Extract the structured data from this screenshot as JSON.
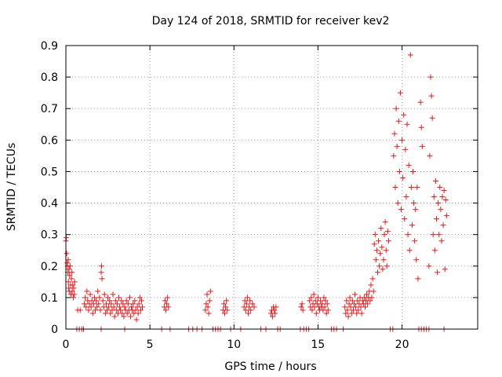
{
  "chart_data": {
    "type": "scatter",
    "title": "Day 124 of 2018, SRMTID for receiver kev2",
    "xlabel": "GPS time / hours",
    "ylabel": "SRMTID / TECUs",
    "xlim": [
      0,
      24.5
    ],
    "ylim": [
      0,
      0.9
    ],
    "x_ticks": [
      0,
      5,
      10,
      15,
      20
    ],
    "x_tick_labels": [
      "0",
      "5",
      "10",
      "15",
      "20"
    ],
    "y_ticks": [
      0,
      0.1,
      0.2,
      0.3,
      0.4,
      0.5,
      0.6,
      0.7,
      0.8,
      0.9
    ],
    "y_tick_labels": [
      "0",
      "0.1",
      "0.2",
      "0.3",
      "0.4",
      "0.5",
      "0.6",
      "0.7",
      "0.8",
      "0.9"
    ],
    "grid": true,
    "marker": "+",
    "color": "#e41a1c",
    "series": [
      {
        "name": "SRMTID",
        "points": [
          [
            0.0,
            0.28
          ],
          [
            0.02,
            0.29
          ],
          [
            0.05,
            0.24
          ],
          [
            0.08,
            0.21
          ],
          [
            0.1,
            0.2
          ],
          [
            0.12,
            0.18
          ],
          [
            0.14,
            0.22
          ],
          [
            0.15,
            0.15
          ],
          [
            0.17,
            0.13
          ],
          [
            0.19,
            0.19
          ],
          [
            0.2,
            0.12
          ],
          [
            0.22,
            0.17
          ],
          [
            0.25,
            0.2
          ],
          [
            0.28,
            0.14
          ],
          [
            0.3,
            0.11
          ],
          [
            0.33,
            0.16
          ],
          [
            0.36,
            0.18
          ],
          [
            0.38,
            0.12
          ],
          [
            0.41,
            0.14
          ],
          [
            0.44,
            0.1
          ],
          [
            0.47,
            0.13
          ],
          [
            0.5,
            0.11
          ],
          [
            0.52,
            0.15
          ],
          [
            0.7,
            0.06
          ],
          [
            0.85,
            0.06
          ],
          [
            1.1,
            0.08
          ],
          [
            1.15,
            0.1
          ],
          [
            1.2,
            0.07
          ],
          [
            1.25,
            0.12
          ],
          [
            1.3,
            0.09
          ],
          [
            1.35,
            0.06
          ],
          [
            1.4,
            0.08
          ],
          [
            1.45,
            0.11
          ],
          [
            1.5,
            0.07
          ],
          [
            1.55,
            0.09
          ],
          [
            1.6,
            0.05
          ],
          [
            1.65,
            0.08
          ],
          [
            1.7,
            0.1
          ],
          [
            1.75,
            0.06
          ],
          [
            1.8,
            0.09
          ],
          [
            1.85,
            0.07
          ],
          [
            1.9,
            0.12
          ],
          [
            1.95,
            0.08
          ],
          [
            2.0,
            0.1
          ],
          [
            2.05,
            0.06
          ],
          [
            2.1,
            0.18
          ],
          [
            2.12,
            0.2
          ],
          [
            2.15,
            0.16
          ],
          [
            2.2,
            0.09
          ],
          [
            2.25,
            0.07
          ],
          [
            2.3,
            0.11
          ],
          [
            2.35,
            0.05
          ],
          [
            2.4,
            0.08
          ],
          [
            2.45,
            0.06
          ],
          [
            2.5,
            0.1
          ],
          [
            2.55,
            0.07
          ],
          [
            2.6,
            0.09
          ],
          [
            2.65,
            0.05
          ],
          [
            2.7,
            0.08
          ],
          [
            2.75,
            0.06
          ],
          [
            2.8,
            0.11
          ],
          [
            2.85,
            0.07
          ],
          [
            2.9,
            0.04
          ],
          [
            2.95,
            0.09
          ],
          [
            3.0,
            0.06
          ],
          [
            3.05,
            0.08
          ],
          [
            3.1,
            0.05
          ],
          [
            3.15,
            0.1
          ],
          [
            3.2,
            0.07
          ],
          [
            3.25,
            0.06
          ],
          [
            3.3,
            0.09
          ],
          [
            3.35,
            0.05
          ],
          [
            3.4,
            0.08
          ],
          [
            3.45,
            0.04
          ],
          [
            3.5,
            0.07
          ],
          [
            3.55,
            0.06
          ],
          [
            3.6,
            0.09
          ],
          [
            3.65,
            0.05
          ],
          [
            3.7,
            0.08
          ],
          [
            3.75,
            0.06
          ],
          [
            3.8,
            0.1
          ],
          [
            3.85,
            0.04
          ],
          [
            3.9,
            0.07
          ],
          [
            3.95,
            0.06
          ],
          [
            4.0,
            0.08
          ],
          [
            4.05,
            0.05
          ],
          [
            4.1,
            0.09
          ],
          [
            4.15,
            0.06
          ],
          [
            4.2,
            0.03
          ],
          [
            4.25,
            0.07
          ],
          [
            4.3,
            0.05
          ],
          [
            4.35,
            0.08
          ],
          [
            4.4,
            0.1
          ],
          [
            4.45,
            0.06
          ],
          [
            4.5,
            0.09
          ],
          [
            4.55,
            0.07
          ],
          [
            5.85,
            0.07
          ],
          [
            5.9,
            0.09
          ],
          [
            5.95,
            0.06
          ],
          [
            6.0,
            0.08
          ],
          [
            6.05,
            0.1
          ],
          [
            6.1,
            0.07
          ],
          [
            8.3,
            0.06
          ],
          [
            8.35,
            0.08
          ],
          [
            8.4,
            0.11
          ],
          [
            8.45,
            0.07
          ],
          [
            8.5,
            0.05
          ],
          [
            8.55,
            0.09
          ],
          [
            8.6,
            0.12
          ],
          [
            9.35,
            0.06
          ],
          [
            9.4,
            0.08
          ],
          [
            9.45,
            0.05
          ],
          [
            9.5,
            0.07
          ],
          [
            9.55,
            0.09
          ],
          [
            9.6,
            0.06
          ],
          [
            10.6,
            0.07
          ],
          [
            10.65,
            0.09
          ],
          [
            10.7,
            0.06
          ],
          [
            10.75,
            0.08
          ],
          [
            10.8,
            0.1
          ],
          [
            10.85,
            0.05
          ],
          [
            10.9,
            0.07
          ],
          [
            10.95,
            0.09
          ],
          [
            11.0,
            0.06
          ],
          [
            11.1,
            0.08
          ],
          [
            11.2,
            0.07
          ],
          [
            12.2,
            0.05
          ],
          [
            12.25,
            0.06
          ],
          [
            12.3,
            0.04
          ],
          [
            12.35,
            0.07
          ],
          [
            12.4,
            0.06
          ],
          [
            12.45,
            0.05
          ],
          [
            12.5,
            0.07
          ],
          [
            14.0,
            0.07
          ],
          [
            14.05,
            0.08
          ],
          [
            14.1,
            0.06
          ],
          [
            14.5,
            0.09
          ],
          [
            14.55,
            0.07
          ],
          [
            14.6,
            0.1
          ],
          [
            14.65,
            0.06
          ],
          [
            14.7,
            0.08
          ],
          [
            14.75,
            0.11
          ],
          [
            14.8,
            0.07
          ],
          [
            14.85,
            0.09
          ],
          [
            14.9,
            0.05
          ],
          [
            14.95,
            0.08
          ],
          [
            15.0,
            0.1
          ],
          [
            15.05,
            0.07
          ],
          [
            15.1,
            0.06
          ],
          [
            15.15,
            0.09
          ],
          [
            15.2,
            0.07
          ],
          [
            15.25,
            0.08
          ],
          [
            15.3,
            0.06
          ],
          [
            15.35,
            0.1
          ],
          [
            15.4,
            0.07
          ],
          [
            15.45,
            0.09
          ],
          [
            15.5,
            0.05
          ],
          [
            15.55,
            0.08
          ],
          [
            15.6,
            0.06
          ],
          [
            16.6,
            0.07
          ],
          [
            16.65,
            0.05
          ],
          [
            16.7,
            0.09
          ],
          [
            16.75,
            0.06
          ],
          [
            16.8,
            0.04
          ],
          [
            16.85,
            0.08
          ],
          [
            16.9,
            0.1
          ],
          [
            16.95,
            0.07
          ],
          [
            17.0,
            0.05
          ],
          [
            17.05,
            0.09
          ],
          [
            17.1,
            0.06
          ],
          [
            17.15,
            0.08
          ],
          [
            17.2,
            0.11
          ],
          [
            17.25,
            0.07
          ],
          [
            17.3,
            0.05
          ],
          [
            17.35,
            0.09
          ],
          [
            17.4,
            0.06
          ],
          [
            17.45,
            0.08
          ],
          [
            17.5,
            0.1
          ],
          [
            17.55,
            0.07
          ],
          [
            17.6,
            0.05
          ],
          [
            17.65,
            0.09
          ],
          [
            17.7,
            0.08
          ],
          [
            17.75,
            0.1
          ],
          [
            17.8,
            0.07
          ],
          [
            17.85,
            0.09
          ],
          [
            17.9,
            0.11
          ],
          [
            17.95,
            0.08
          ],
          [
            18.0,
            0.1
          ],
          [
            18.05,
            0.12
          ],
          [
            18.1,
            0.09
          ],
          [
            18.15,
            0.14
          ],
          [
            18.2,
            0.1
          ],
          [
            18.25,
            0.16
          ],
          [
            18.3,
            0.12
          ],
          [
            18.35,
            0.27
          ],
          [
            18.4,
            0.3
          ],
          [
            18.45,
            0.22
          ],
          [
            18.5,
            0.25
          ],
          [
            18.55,
            0.18
          ],
          [
            18.6,
            0.28
          ],
          [
            18.65,
            0.2
          ],
          [
            18.7,
            0.24
          ],
          [
            18.75,
            0.32
          ],
          [
            18.8,
            0.26
          ],
          [
            18.85,
            0.19
          ],
          [
            18.9,
            0.22
          ],
          [
            18.95,
            0.3
          ],
          [
            19.0,
            0.34
          ],
          [
            19.05,
            0.25
          ],
          [
            19.1,
            0.2
          ],
          [
            19.15,
            0.31
          ],
          [
            19.2,
            0.28
          ],
          [
            19.5,
            0.55
          ],
          [
            19.55,
            0.62
          ],
          [
            19.6,
            0.45
          ],
          [
            19.65,
            0.7
          ],
          [
            19.7,
            0.58
          ],
          [
            19.75,
            0.4
          ],
          [
            19.8,
            0.66
          ],
          [
            19.85,
            0.5
          ],
          [
            19.9,
            0.75
          ],
          [
            19.95,
            0.38
          ],
          [
            20.0,
            0.6
          ],
          [
            20.05,
            0.48
          ],
          [
            20.1,
            0.68
          ],
          [
            20.15,
            0.35
          ],
          [
            20.2,
            0.57
          ],
          [
            20.25,
            0.42
          ],
          [
            20.3,
            0.65
          ],
          [
            20.35,
            0.3
          ],
          [
            20.4,
            0.52
          ],
          [
            20.45,
            0.25
          ],
          [
            20.5,
            0.87
          ],
          [
            20.55,
            0.45
          ],
          [
            20.6,
            0.33
          ],
          [
            20.65,
            0.5
          ],
          [
            20.7,
            0.4
          ],
          [
            20.75,
            0.28
          ],
          [
            20.8,
            0.38
          ],
          [
            20.85,
            0.22
          ],
          [
            20.9,
            0.45
          ],
          [
            20.95,
            0.16
          ],
          [
            21.1,
            0.72
          ],
          [
            21.15,
            0.64
          ],
          [
            21.2,
            0.58
          ],
          [
            21.6,
            0.2
          ],
          [
            21.65,
            0.55
          ],
          [
            21.7,
            0.8
          ],
          [
            21.75,
            0.74
          ],
          [
            21.8,
            0.67
          ],
          [
            21.85,
            0.3
          ],
          [
            21.9,
            0.42
          ],
          [
            21.95,
            0.25
          ],
          [
            22.0,
            0.47
          ],
          [
            22.05,
            0.35
          ],
          [
            22.1,
            0.18
          ],
          [
            22.15,
            0.4
          ],
          [
            22.2,
            0.3
          ],
          [
            22.25,
            0.45
          ],
          [
            22.3,
            0.38
          ],
          [
            22.35,
            0.28
          ],
          [
            22.4,
            0.42
          ],
          [
            22.45,
            0.33
          ],
          [
            22.5,
            0.44
          ],
          [
            22.55,
            0.19
          ],
          [
            22.6,
            0.41
          ],
          [
            22.65,
            0.36
          ],
          [
            0.65,
            0
          ],
          [
            0.8,
            0
          ],
          [
            0.95,
            0
          ],
          [
            1.05,
            0
          ],
          [
            2.1,
            0
          ],
          [
            3.5,
            0
          ],
          [
            5.7,
            0
          ],
          [
            6.2,
            0
          ],
          [
            7.3,
            0
          ],
          [
            7.55,
            0
          ],
          [
            7.8,
            0
          ],
          [
            8.1,
            0
          ],
          [
            8.75,
            0
          ],
          [
            8.9,
            0
          ],
          [
            9.05,
            0
          ],
          [
            9.2,
            0
          ],
          [
            9.8,
            0
          ],
          [
            10.4,
            0
          ],
          [
            11.6,
            0
          ],
          [
            11.9,
            0
          ],
          [
            12.6,
            0
          ],
          [
            12.75,
            0
          ],
          [
            13.95,
            0
          ],
          [
            14.15,
            0
          ],
          [
            14.3,
            0
          ],
          [
            14.45,
            0
          ],
          [
            15.8,
            0
          ],
          [
            15.95,
            0
          ],
          [
            16.1,
            0
          ],
          [
            16.5,
            0
          ],
          [
            19.3,
            0
          ],
          [
            19.45,
            0
          ],
          [
            21.0,
            0
          ],
          [
            21.15,
            0
          ],
          [
            21.3,
            0
          ],
          [
            21.45,
            0
          ],
          [
            21.6,
            0
          ],
          [
            22.5,
            0
          ]
        ]
      }
    ]
  }
}
